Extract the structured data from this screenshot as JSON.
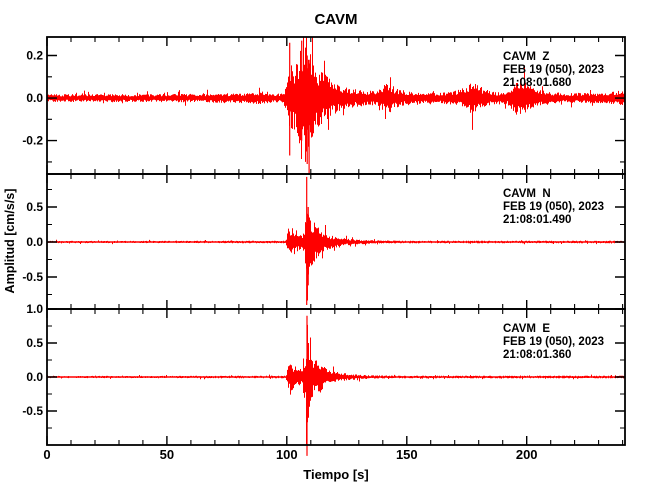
{
  "title": "CAVM",
  "xlabel": "Tiempo [s]",
  "ylabel": "Amplitud [cm/s/s]",
  "colors": {
    "trace": "#ff0000",
    "frame": "#000000",
    "background": "#ffffff",
    "text": "#000000"
  },
  "x_axis": {
    "min": 0,
    "max": 241,
    "major_step": 50,
    "minor_step": 10,
    "major_ticks": [
      0,
      50,
      100,
      150,
      200
    ],
    "tick_labels": [
      "0",
      "50",
      "100",
      "150",
      "200"
    ]
  },
  "chart_data": [
    {
      "type": "line",
      "station": "CAVM",
      "component": "Z",
      "label_lines": [
        "CAVM  Z",
        "FEB 19 (050), 2023",
        "21:08:01.680"
      ],
      "ylim": [
        -0.357,
        0.287
      ],
      "ytick_major_values": [
        0.2,
        0.0,
        -0.2
      ],
      "ytick_major_labels": [
        "0.2",
        "0.0",
        "-0.2"
      ],
      "ytick_minor_step": 0.1,
      "noise_floor": 0.015,
      "event_onset_s": 100,
      "peak_amplitude": 0.27,
      "envelope": [
        [
          0,
          0.015
        ],
        [
          40,
          0.015
        ],
        [
          60,
          0.016
        ],
        [
          85,
          0.02
        ],
        [
          89,
          0.026
        ],
        [
          93,
          0.02
        ],
        [
          98,
          0.017
        ],
        [
          100,
          0.06
        ],
        [
          101,
          0.12
        ],
        [
          102,
          0.13
        ],
        [
          103,
          0.12
        ],
        [
          104,
          0.13
        ],
        [
          105,
          0.18
        ],
        [
          106,
          0.24
        ],
        [
          107,
          0.25
        ],
        [
          108,
          0.24
        ],
        [
          109,
          0.2
        ],
        [
          110,
          0.16
        ],
        [
          111,
          0.14
        ],
        [
          112,
          0.12
        ],
        [
          113,
          0.11
        ],
        [
          115,
          0.095
        ],
        [
          117,
          0.08
        ],
        [
          119,
          0.065
        ],
        [
          121,
          0.055
        ],
        [
          124,
          0.045
        ],
        [
          127,
          0.038
        ],
        [
          130,
          0.032
        ],
        [
          134,
          0.028
        ],
        [
          137,
          0.03
        ],
        [
          139,
          0.04
        ],
        [
          141,
          0.06
        ],
        [
          143,
          0.055
        ],
        [
          145,
          0.04
        ],
        [
          147,
          0.032
        ],
        [
          150,
          0.028
        ],
        [
          154,
          0.024
        ],
        [
          158,
          0.022
        ],
        [
          163,
          0.021
        ],
        [
          168,
          0.024
        ],
        [
          172,
          0.032
        ],
        [
          175,
          0.05
        ],
        [
          177,
          0.065
        ],
        [
          179,
          0.055
        ],
        [
          181,
          0.04
        ],
        [
          183,
          0.03
        ],
        [
          186,
          0.024
        ],
        [
          189,
          0.022
        ],
        [
          192,
          0.028
        ],
        [
          194,
          0.045
        ],
        [
          196,
          0.07
        ],
        [
          198,
          0.075
        ],
        [
          200,
          0.055
        ],
        [
          202,
          0.04
        ],
        [
          204,
          0.032
        ],
        [
          206,
          0.03
        ],
        [
          208,
          0.026
        ],
        [
          211,
          0.022
        ],
        [
          215,
          0.02
        ],
        [
          220,
          0.019
        ],
        [
          225,
          0.02
        ],
        [
          230,
          0.019
        ],
        [
          234,
          0.02
        ],
        [
          237,
          0.028
        ],
        [
          239,
          0.035
        ],
        [
          241,
          0.03
        ]
      ],
      "spikes": [
        [
          101.2,
          0.26,
          -0.27
        ],
        [
          106.2,
          0.27,
          -0.2
        ],
        [
          108.5,
          0.2,
          -0.31
        ],
        [
          109.3,
          0.18,
          -0.356
        ]
      ],
      "overshoot_below": false
    },
    {
      "type": "line",
      "station": "CAVM",
      "component": "N",
      "label_lines": [
        "CAVM  N",
        "FEB 19 (050), 2023",
        "21:08:01.490"
      ],
      "ylim": [
        -0.957,
        0.971
      ],
      "ytick_major_values": [
        0.5,
        0.0,
        -0.5
      ],
      "ytick_major_labels": [
        "0.5",
        "0.0",
        "-0.5"
      ],
      "ytick_minor_step": 0.25,
      "noise_floor": 0.013,
      "event_onset_s": 100,
      "peak_amplitude": 0.93,
      "envelope": [
        [
          0,
          0.013
        ],
        [
          50,
          0.013
        ],
        [
          90,
          0.014
        ],
        [
          98,
          0.014
        ],
        [
          99.5,
          0.02
        ],
        [
          100.3,
          0.13
        ],
        [
          101,
          0.15
        ],
        [
          102,
          0.16
        ],
        [
          103,
          0.15
        ],
        [
          104,
          0.13
        ],
        [
          105,
          0.1
        ],
        [
          106,
          0.09
        ],
        [
          107,
          0.13
        ],
        [
          107.8,
          0.3
        ],
        [
          108.3,
          0.85
        ],
        [
          108.8,
          0.45
        ],
        [
          109.5,
          0.33
        ],
        [
          110,
          0.28
        ],
        [
          111,
          0.24
        ],
        [
          112,
          0.2
        ],
        [
          113,
          0.17
        ],
        [
          114,
          0.14
        ],
        [
          115,
          0.12
        ],
        [
          116,
          0.105
        ],
        [
          117,
          0.09
        ],
        [
          118,
          0.08
        ],
        [
          119,
          0.072
        ],
        [
          120,
          0.065
        ],
        [
          122,
          0.052
        ],
        [
          124,
          0.042
        ],
        [
          126,
          0.036
        ],
        [
          128,
          0.03
        ],
        [
          131,
          0.026
        ],
        [
          134,
          0.022
        ],
        [
          138,
          0.019
        ],
        [
          143,
          0.017
        ],
        [
          150,
          0.015
        ],
        [
          160,
          0.014
        ],
        [
          170,
          0.014
        ],
        [
          180,
          0.015
        ],
        [
          190,
          0.014
        ],
        [
          200,
          0.015
        ],
        [
          210,
          0.014
        ],
        [
          220,
          0.015
        ],
        [
          230,
          0.014
        ],
        [
          241,
          0.015
        ]
      ],
      "spikes": [
        [
          108.3,
          0.93,
          -0.9
        ],
        [
          108.9,
          0.5,
          -0.62
        ]
      ],
      "overshoot_below": false
    },
    {
      "type": "line",
      "station": "CAVM",
      "component": "E",
      "label_lines": [
        "CAVM  E",
        "FEB 19 (050), 2023",
        "21:08:01.360"
      ],
      "ylim": [
        -1.0,
        1.0
      ],
      "ytick_major_values": [
        1.0,
        0.5,
        0.0,
        -0.5
      ],
      "ytick_major_labels": [
        "1.0",
        "0.5",
        "0.0",
        "-0.5"
      ],
      "ytick_minor_step": 0.25,
      "noise_floor": 0.013,
      "event_onset_s": 100,
      "peak_amplitude": 0.9,
      "envelope": [
        [
          0,
          0.013
        ],
        [
          50,
          0.013
        ],
        [
          90,
          0.015
        ],
        [
          98,
          0.015
        ],
        [
          99.5,
          0.02
        ],
        [
          100.3,
          0.13
        ],
        [
          101,
          0.16
        ],
        [
          102,
          0.16
        ],
        [
          103,
          0.14
        ],
        [
          104,
          0.12
        ],
        [
          105,
          0.1
        ],
        [
          106,
          0.1
        ],
        [
          107,
          0.14
        ],
        [
          107.8,
          0.32
        ],
        [
          108.3,
          0.75
        ],
        [
          108.8,
          0.42
        ],
        [
          109.5,
          0.3
        ],
        [
          110,
          0.26
        ],
        [
          111,
          0.22
        ],
        [
          112,
          0.21
        ],
        [
          113,
          0.23
        ],
        [
          114,
          0.19
        ],
        [
          115,
          0.15
        ],
        [
          116,
          0.12
        ],
        [
          117,
          0.1
        ],
        [
          118,
          0.09
        ],
        [
          119,
          0.08
        ],
        [
          120,
          0.07
        ],
        [
          122,
          0.055
        ],
        [
          124,
          0.045
        ],
        [
          126,
          0.038
        ],
        [
          129,
          0.03
        ],
        [
          132,
          0.025
        ],
        [
          136,
          0.021
        ],
        [
          140,
          0.018
        ],
        [
          146,
          0.016
        ],
        [
          155,
          0.015
        ],
        [
          165,
          0.015
        ],
        [
          175,
          0.016
        ],
        [
          185,
          0.015
        ],
        [
          195,
          0.016
        ],
        [
          205,
          0.015
        ],
        [
          215,
          0.016
        ],
        [
          225,
          0.015
        ],
        [
          241,
          0.016
        ]
      ],
      "spikes": [
        [
          108.4,
          0.9,
          -1.16
        ],
        [
          109.0,
          0.5,
          -0.6
        ]
      ],
      "overshoot_below": true
    }
  ]
}
